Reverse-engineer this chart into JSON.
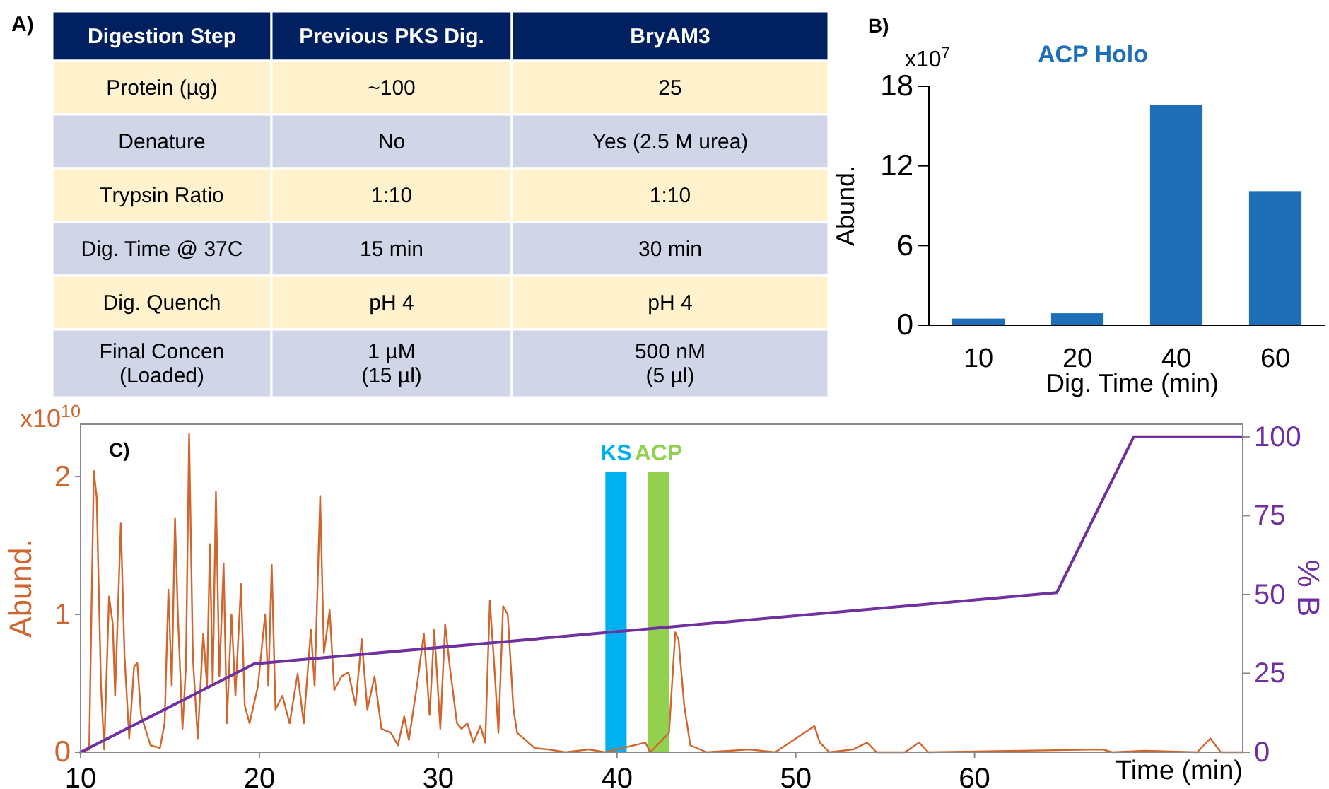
{
  "chart_data": [
    {
      "type": "other",
      "annotations": [
        "A)",
        "Digestion Step",
        "Previous PKS Dig.",
        "BryAM3",
        "Protein (µg)",
        "~100",
        "25",
        "Denature",
        "No",
        "Yes (2.5 M urea)",
        "Trypsin Ratio",
        "1:10",
        "1:10",
        "Dig. Time @ 37C",
        "15 min",
        "30 min",
        "Dig. Quench",
        "pH 4",
        "pH 4",
        "Final Concen\n(Loaded)",
        "1 µM\n(15 µl)",
        "500 nM\n(5 µl)"
      ]
    },
    {
      "type": "bar",
      "title": "ACP Holo",
      "xlabel": "Dig. Time (min)",
      "ylabel": "Abund.",
      "annotations": [
        "B)",
        "x10$^{7}$"
      ],
      "categories": [
        "10",
        "20",
        "40",
        "60"
      ],
      "values": [
        0.5,
        0.9,
        16.6,
        10.1
      ],
      "color": "#1f6fb8",
      "ylim": [
        0,
        18
      ],
      "yticks": [
        0,
        6,
        12,
        18
      ]
    },
    {
      "type": "line",
      "xlabel": "Time (min)",
      "ylabel": "Abund.",
      "y2label": "% B",
      "annotations": [
        "C)",
        "x10$^{10}$"
      ],
      "xlim": [
        10,
        75
      ],
      "xticks": [
        10,
        20,
        30,
        40,
        50,
        60
      ],
      "ylim": [
        0,
        2.38
      ],
      "yticks": [
        0,
        1,
        2
      ],
      "y2lim": [
        0,
        104
      ],
      "y2ticks": [
        0,
        25,
        50,
        75,
        100
      ],
      "bands": [
        {
          "axis": "x",
          "from": 39.35,
          "to": 40.54,
          "label": "KS",
          "color": "#00b0f0"
        },
        {
          "axis": "x",
          "from": 41.73,
          "to": 42.91,
          "label": "ACP",
          "color": "#92d050"
        }
      ],
      "series": [
        {
          "type": "line",
          "color": "#d0652e",
          "x": [
            10,
            10.48,
            10.74,
            10.9,
            11.14,
            11.32,
            11.59,
            11.8,
            11.93,
            12.25,
            12.46,
            12.72,
            12.99,
            13.17,
            13.38,
            13.91,
            14.44,
            14.7,
            14.91,
            15.1,
            15.28,
            15.44,
            15.7,
            15.89,
            16.07,
            16.28,
            16.55,
            16.86,
            17.07,
            17.23,
            17.39,
            17.57,
            17.76,
            18.0,
            18.18,
            18.44,
            18.66,
            18.97,
            19.18,
            19.45,
            19.92,
            20.32,
            20.5,
            20.69,
            20.9,
            21.29,
            21.69,
            22.14,
            22.48,
            22.88,
            23.09,
            23.4,
            23.61,
            23.93,
            24.19,
            24.59,
            24.98,
            25.38,
            25.72,
            26.04,
            26.44,
            26.83,
            27.36,
            27.75,
            28.1,
            28.36,
            28.81,
            29.2,
            29.52,
            29.78,
            30.12,
            30.39,
            30.65,
            31.05,
            31.31,
            31.63,
            31.97,
            32.36,
            32.63,
            32.89,
            33.16,
            33.37,
            33.63,
            33.89,
            34.21,
            34.42,
            34.87,
            35.4,
            36.19,
            37.11,
            38.43,
            39.35,
            41.59,
            41.86,
            42.91,
            43.26,
            43.44,
            43.76,
            44.1,
            45.02,
            47.4,
            48.85,
            50.82,
            51.04,
            51.35,
            51.88,
            53.2,
            53.99,
            54.52,
            56.1,
            56.9,
            57.42,
            67.18,
            67.7,
            69.55,
            72.45,
            73.19,
            73.77,
            75
          ],
          "values": [
            0,
            0.02,
            2.04,
            1.85,
            0.48,
            0.02,
            1.13,
            0.93,
            0.41,
            1.66,
            0.69,
            0.1,
            0.62,
            0.65,
            0.27,
            0.05,
            0.03,
            0.21,
            1.18,
            0.48,
            1.7,
            1.0,
            0.17,
            0.62,
            2.31,
            0.69,
            0.1,
            0.86,
            0.48,
            1.51,
            0.48,
            1.89,
            0.55,
            1.37,
            0.21,
            1.0,
            0.41,
            1.22,
            0.34,
            0.21,
            0.48,
            1.0,
            0.48,
            1.36,
            0.31,
            0.41,
            0.21,
            0.57,
            0.21,
            0.89,
            0.48,
            1.86,
            0.72,
            1.03,
            0.45,
            0.55,
            0.58,
            0.34,
            0.82,
            0.31,
            0.55,
            0.17,
            0.14,
            0.05,
            0.26,
            0.09,
            0.48,
            0.86,
            0.27,
            0.89,
            0.17,
            0.93,
            0.62,
            0.21,
            0.17,
            0.21,
            0.07,
            0.19,
            0.07,
            1.1,
            0.58,
            0.14,
            1.06,
            1.0,
            0.31,
            0.14,
            0.09,
            0.03,
            0.02,
            0,
            0.02,
            0,
            0.07,
            0,
            0.14,
            0.87,
            0.82,
            0.34,
            0.05,
            0,
            0.02,
            0,
            0.17,
            0.19,
            0.07,
            0,
            0.02,
            0.07,
            0,
            0,
            0.07,
            0,
            0.02,
            0,
            0.01,
            0,
            0.1,
            0,
            0
          ]
        },
        {
          "type": "line",
          "axis": "y2",
          "color": "#7030a0",
          "x": [
            10,
            19.7,
            64.6,
            68.9,
            75
          ],
          "values": [
            0,
            28,
            50.6,
            100,
            100
          ]
        }
      ]
    }
  ]
}
